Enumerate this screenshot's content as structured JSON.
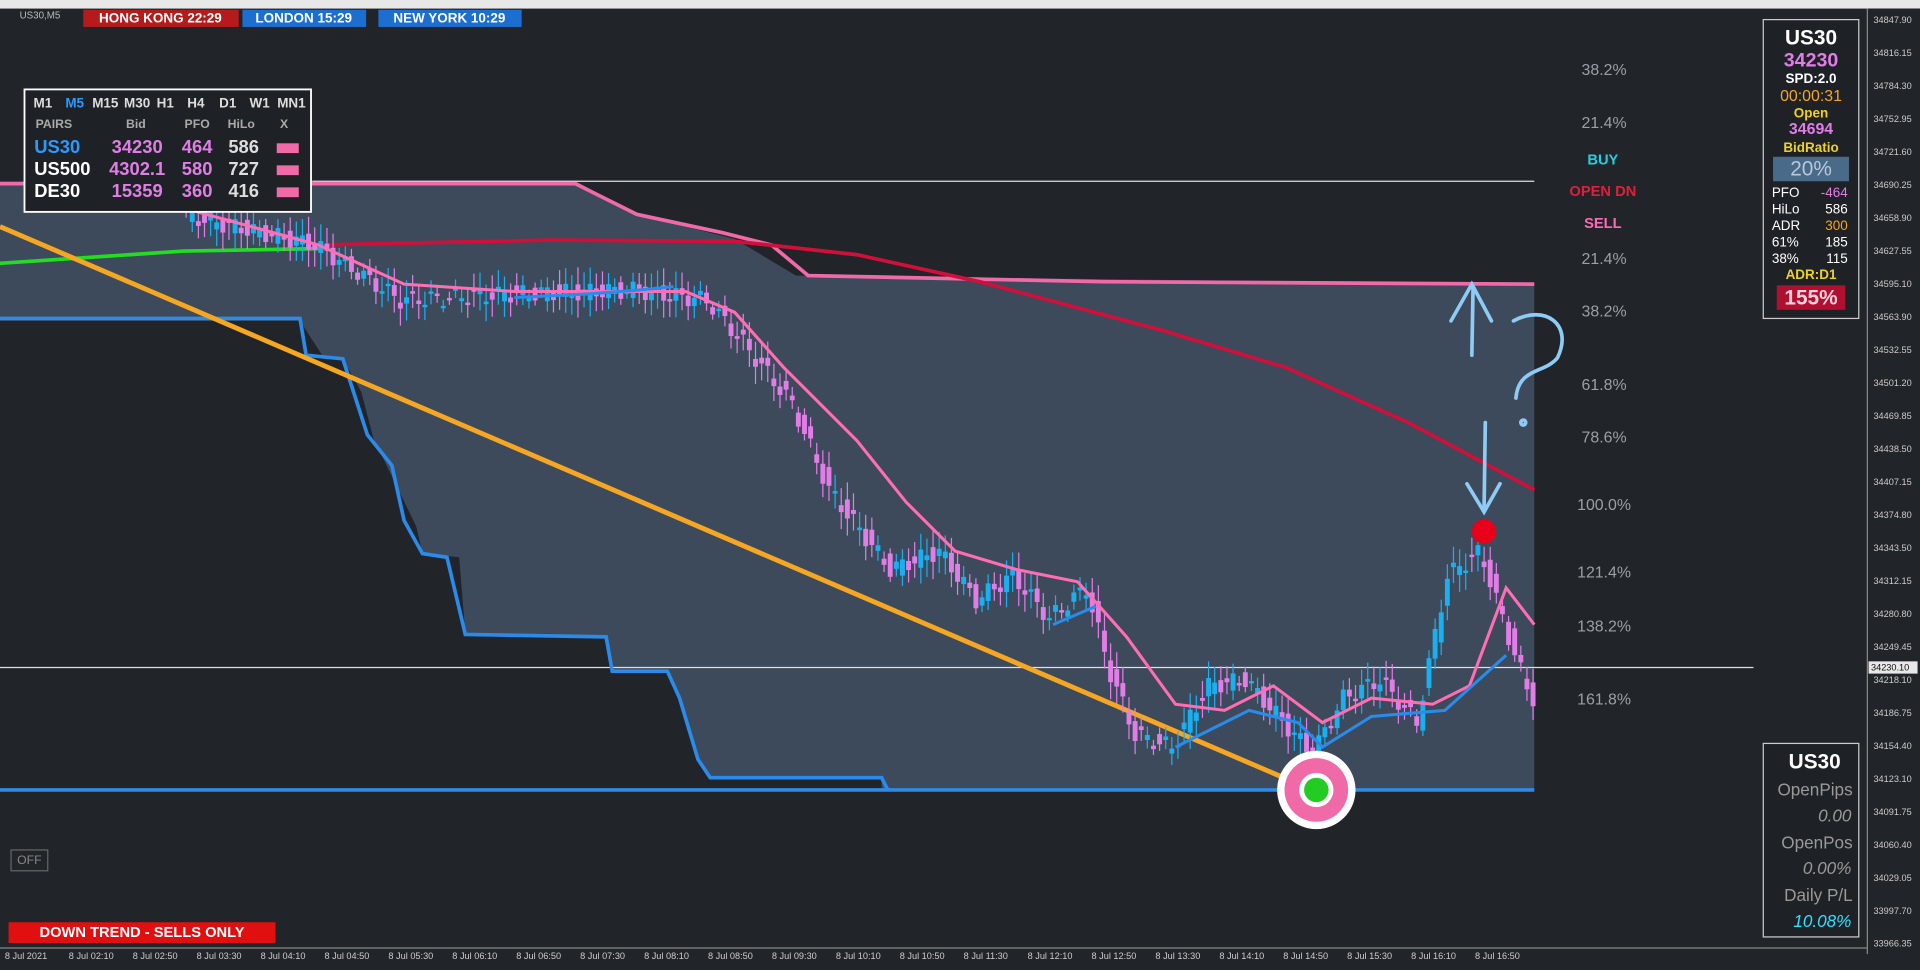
{
  "header": {
    "symbol": "US30,M5",
    "sessions": [
      "HONG KONG 22:29",
      "LONDON  15:29",
      "NEW YORK 10:29"
    ]
  },
  "pairs_panel": {
    "timeframes": [
      "M1",
      "M5",
      "M15",
      "M30",
      "H1",
      "H4",
      "D1",
      "W1",
      "MN1"
    ],
    "columns": [
      "PAIRS",
      "Bid",
      "PFO",
      "HiLo",
      "X"
    ],
    "rows": [
      [
        "US30",
        "34230",
        "464",
        "586"
      ],
      [
        "US500",
        "4302.1",
        "580",
        "727"
      ],
      [
        "DE30",
        "15359",
        "360",
        "416"
      ]
    ]
  },
  "fib_levels": [
    "38.2%",
    "21.4%",
    "21.4%",
    "38.2%",
    "61.8%",
    "78.6%",
    "100.0%",
    "121.4%",
    "138.2%",
    "161.8%"
  ],
  "signals": [
    "BUY",
    "OPEN DN",
    "SELL"
  ],
  "info_panel": {
    "symbol": "US30",
    "price": "34230",
    "spread": "SPD:2.0",
    "timer": "00:00:31",
    "open_label": "Open",
    "open_value": "34694",
    "bid_ratio_label": "BidRatio",
    "bid_ratio": "20%",
    "stats": [
      [
        "PFO",
        "-464"
      ],
      [
        "HiLo",
        "586"
      ],
      [
        "ADR",
        "300"
      ],
      [
        "61%",
        "185"
      ],
      [
        "38%",
        "115"
      ]
    ],
    "adr_label": "ADR:D1",
    "adr_value": "155%"
  },
  "pnl_panel": {
    "symbol": "US30",
    "open_pips_label": "OpenPips",
    "open_pips": "0.00",
    "open_pos_label": "OpenPos",
    "open_pos": "0.00%",
    "daily_label": "Daily P/L",
    "daily": "10.08%"
  },
  "price_axis": {
    "labels": [
      "34847.90",
      "34816.15",
      "34784.30",
      "34752.95",
      "34721.60",
      "34690.25",
      "34658.90",
      "34627.55",
      "34595.10",
      "34563.90",
      "34532.55",
      "34501.20",
      "34469.85",
      "34438.50",
      "34407.15",
      "34374.80",
      "34343.50",
      "34312.15",
      "34280.80",
      "34249.45",
      "34218.10",
      "34186.75",
      "34154.40",
      "34123.10",
      "34091.75",
      "34060.40",
      "34029.05",
      "33997.70",
      "33966.35"
    ],
    "current": "34230.10"
  },
  "time_axis": [
    "8 Jul 2021",
    "8 Jul 02:10",
    "8 Jul 02:50",
    "8 Jul 03:30",
    "8 Jul 04:10",
    "8 Jul 04:50",
    "8 Jul 05:30",
    "8 Jul 06:10",
    "8 Jul 06:50",
    "8 Jul 07:30",
    "8 Jul 08:10",
    "8 Jul 08:50",
    "8 Jul 09:30",
    "8 Jul 10:10",
    "8 Jul 10:50",
    "8 Jul 11:30",
    "8 Jul 12:10",
    "8 Jul 12:50",
    "8 Jul 13:30",
    "8 Jul 14:10",
    "8 Jul 14:50",
    "8 Jul 15:30",
    "8 Jul 16:10",
    "8 Jul 16:50"
  ],
  "controls": {
    "off_button": "OFF",
    "trend_banner": "DOWN TREND - SELLS ONLY"
  }
}
